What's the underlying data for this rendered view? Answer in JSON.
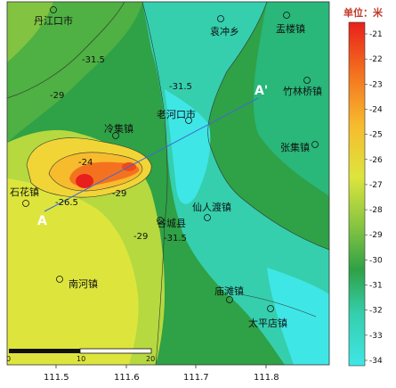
{
  "legend": {
    "title": "单位：米",
    "ticks": [
      "-21",
      "-22",
      "-23",
      "-24",
      "-25",
      "-26",
      "-27",
      "-28",
      "-29",
      "-30",
      "-31",
      "-32",
      "-33",
      "-34"
    ],
    "colors": [
      "#e8201b",
      "#ee4a1c",
      "#f4721f",
      "#f79a27",
      "#f7bb2e",
      "#f1d537",
      "#dde53d",
      "#b5d93f",
      "#82c341",
      "#4fb043",
      "#2fa146",
      "#29b77a",
      "#35cfae",
      "#3fe6e6"
    ]
  },
  "x_axis": {
    "ticks": [
      "111.5",
      "111.6",
      "111.7",
      "111.8"
    ]
  },
  "cities": [
    {
      "name": "丹江口市"
    },
    {
      "name": "袁冲乡"
    },
    {
      "name": "盂楼镇"
    },
    {
      "name": "竹林桥镇"
    },
    {
      "name": "老河口市"
    },
    {
      "name": "冷集镇"
    },
    {
      "name": "张集镇"
    },
    {
      "name": "石花镇"
    },
    {
      "name": "仙人渡镇"
    },
    {
      "name": "谷城县"
    },
    {
      "name": "南河镇"
    },
    {
      "name": "庙滩镇"
    },
    {
      "name": "太平店镇"
    }
  ],
  "profile": {
    "start": "A",
    "end": "A'"
  },
  "contour_labels": [
    "-31.5",
    "-29",
    "-24",
    "-26.5",
    "-29",
    "-31.5",
    "-29",
    "-31.5"
  ],
  "scale_bar": {
    "labels": [
      "0",
      "10",
      "20"
    ]
  }
}
